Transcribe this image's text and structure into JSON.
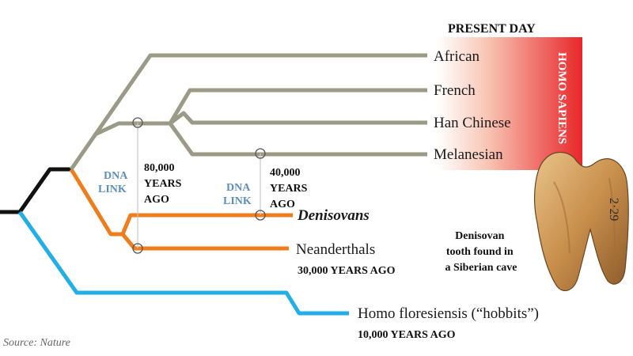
{
  "header": {
    "present_day": "PRESENT DAY",
    "homo_sapiens": "HOMO SAPIENS"
  },
  "tips": {
    "african": "African",
    "french": "French",
    "han_chinese": "Han Chinese",
    "melanesian": "Melanesian",
    "denisovans": "Denisovans",
    "neanderthals": "Neanderthals",
    "floresiensis": "Homo floresiensis (“hobbits”)"
  },
  "annotations": {
    "neanderthals_age": "30,000 YEARS AGO",
    "floresiensis_age": "10,000 YEARS AGO",
    "dna_link_1": [
      "DNA",
      "LINK"
    ],
    "dna_link_1_age": [
      "80,000",
      "YEARS",
      "AGO"
    ],
    "dna_link_2": [
      "DNA",
      "LINK"
    ],
    "dna_link_2_age": [
      "40,000",
      "YEARS",
      "AGO"
    ],
    "tooth_caption": [
      "Denisovan",
      "tooth found in",
      "a Siberian cave"
    ],
    "tooth_marking": "2·29"
  },
  "source": "Source: Nature",
  "colors": {
    "sapiens_branch": "#9a9a86",
    "archaic_branch": "#ef7d1c",
    "floresiensis_branch": "#22aee6",
    "root": "#111111",
    "dna_link_text": "#5b8fbd",
    "gradient_start": "#ffffff",
    "gradient_end": "#e8262a"
  }
}
